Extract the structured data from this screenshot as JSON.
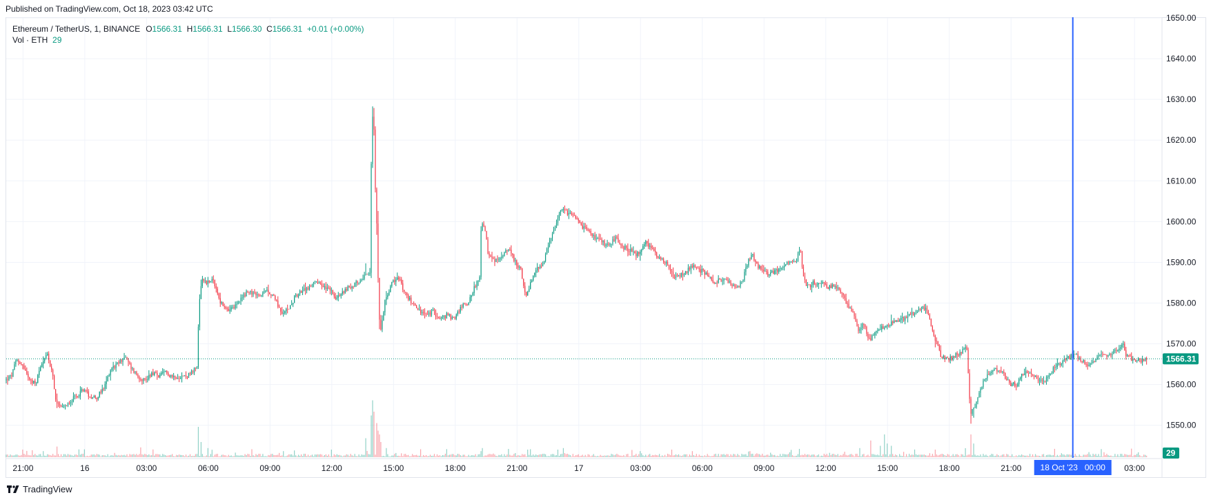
{
  "header": {
    "published": "Published on TradingView.com, Oct 18, 2023 03:42 UTC"
  },
  "legend": {
    "symbol": "Ethereum / TetherUS, 1, BINANCE",
    "o_label": "O",
    "o_value": "1566.31",
    "h_label": "H",
    "h_value": "1566.31",
    "l_label": "L",
    "l_value": "1566.30",
    "c_label": "C",
    "c_value": "1566.31",
    "change": "+0.01 (+0.00%)",
    "vol_label": "Vol · ETH",
    "vol_value": "29"
  },
  "price_label": "1566.31",
  "volume_label": "29",
  "crosshair_label": "18 Oct '23   00:00",
  "brand": "TradingView",
  "colors": {
    "up": "#089981",
    "down": "#f23645",
    "crosshair": "#2962ff",
    "grid": "#f0f3fa"
  },
  "chart_data": {
    "type": "candlestick",
    "symbol": "ETHUSDT",
    "interval": "1m",
    "ylim": [
      1542,
      1650
    ],
    "y_ticks": [
      1550,
      1560,
      1570,
      1580,
      1590,
      1600,
      1610,
      1620,
      1630,
      1640,
      1650
    ],
    "x_ticks": [
      {
        "label": "21:00",
        "t": 0
      },
      {
        "label": "16",
        "t": 180
      },
      {
        "label": "03:00",
        "t": 360
      },
      {
        "label": "06:00",
        "t": 540
      },
      {
        "label": "09:00",
        "t": 720
      },
      {
        "label": "12:00",
        "t": 900
      },
      {
        "label": "15:00",
        "t": 1080
      },
      {
        "label": "18:00",
        "t": 1260
      },
      {
        "label": "21:00",
        "t": 1440
      },
      {
        "label": "17",
        "t": 1620
      },
      {
        "label": "03:00",
        "t": 1800
      },
      {
        "label": "06:00",
        "t": 1980
      },
      {
        "label": "09:00",
        "t": 2160
      },
      {
        "label": "12:00",
        "t": 2340
      },
      {
        "label": "15:00",
        "t": 2520
      },
      {
        "label": "18:00",
        "t": 2700
      },
      {
        "label": "21:00",
        "t": 2880
      },
      {
        "label": "03:00",
        "t": 3240
      }
    ],
    "t_range": [
      -49,
      3318
    ],
    "crosshair_t": 3060,
    "last_close": 1566.31,
    "price_path": [
      [
        -49,
        1561
      ],
      [
        -30,
        1562
      ],
      [
        -15,
        1566
      ],
      [
        0,
        1565
      ],
      [
        20,
        1562
      ],
      [
        40,
        1560
      ],
      [
        60,
        1566
      ],
      [
        75,
        1567
      ],
      [
        90,
        1563
      ],
      [
        100,
        1555
      ],
      [
        120,
        1554
      ],
      [
        140,
        1556
      ],
      [
        160,
        1557
      ],
      [
        180,
        1559
      ],
      [
        200,
        1557
      ],
      [
        220,
        1557
      ],
      [
        240,
        1559
      ],
      [
        260,
        1564
      ],
      [
        280,
        1565
      ],
      [
        300,
        1567
      ],
      [
        320,
        1564
      ],
      [
        340,
        1562
      ],
      [
        360,
        1561
      ],
      [
        380,
        1563
      ],
      [
        400,
        1562
      ],
      [
        420,
        1563
      ],
      [
        440,
        1562
      ],
      [
        460,
        1562
      ],
      [
        480,
        1562
      ],
      [
        500,
        1563
      ],
      [
        513,
        1565
      ],
      [
        516,
        1578
      ],
      [
        525,
        1586
      ],
      [
        540,
        1585
      ],
      [
        555,
        1586
      ],
      [
        565,
        1584
      ],
      [
        580,
        1580
      ],
      [
        600,
        1578
      ],
      [
        620,
        1579
      ],
      [
        640,
        1581
      ],
      [
        660,
        1583
      ],
      [
        680,
        1582
      ],
      [
        700,
        1582
      ],
      [
        720,
        1583
      ],
      [
        740,
        1581
      ],
      [
        760,
        1577
      ],
      [
        780,
        1579
      ],
      [
        800,
        1582
      ],
      [
        820,
        1583
      ],
      [
        840,
        1584
      ],
      [
        860,
        1585
      ],
      [
        880,
        1584
      ],
      [
        900,
        1583
      ],
      [
        920,
        1581
      ],
      [
        940,
        1583
      ],
      [
        960,
        1584
      ],
      [
        980,
        1585
      ],
      [
        1000,
        1587
      ],
      [
        1015,
        1588
      ],
      [
        1020,
        1620
      ],
      [
        1025,
        1630
      ],
      [
        1030,
        1610
      ],
      [
        1035,
        1600
      ],
      [
        1040,
        1582
      ],
      [
        1045,
        1572
      ],
      [
        1050,
        1575
      ],
      [
        1060,
        1581
      ],
      [
        1080,
        1585
      ],
      [
        1100,
        1586
      ],
      [
        1120,
        1582
      ],
      [
        1140,
        1580
      ],
      [
        1160,
        1578
      ],
      [
        1180,
        1577
      ],
      [
        1200,
        1578
      ],
      [
        1220,
        1576
      ],
      [
        1240,
        1577
      ],
      [
        1260,
        1576
      ],
      [
        1280,
        1579
      ],
      [
        1300,
        1580
      ],
      [
        1320,
        1584
      ],
      [
        1335,
        1586
      ],
      [
        1340,
        1600
      ],
      [
        1350,
        1598
      ],
      [
        1360,
        1592
      ],
      [
        1380,
        1590
      ],
      [
        1400,
        1592
      ],
      [
        1420,
        1593
      ],
      [
        1440,
        1590
      ],
      [
        1455,
        1588
      ],
      [
        1470,
        1581
      ],
      [
        1480,
        1584
      ],
      [
        1500,
        1588
      ],
      [
        1520,
        1590
      ],
      [
        1540,
        1595
      ],
      [
        1560,
        1600
      ],
      [
        1575,
        1603
      ],
      [
        1590,
        1602
      ],
      [
        1610,
        1601
      ],
      [
        1630,
        1599
      ],
      [
        1650,
        1598
      ],
      [
        1670,
        1596
      ],
      [
        1690,
        1595
      ],
      [
        1710,
        1594
      ],
      [
        1730,
        1596
      ],
      [
        1750,
        1594
      ],
      [
        1770,
        1593
      ],
      [
        1790,
        1592
      ],
      [
        1800,
        1592
      ],
      [
        1820,
        1595
      ],
      [
        1840,
        1593
      ],
      [
        1860,
        1591
      ],
      [
        1880,
        1590
      ],
      [
        1900,
        1586
      ],
      [
        1920,
        1587
      ],
      [
        1940,
        1588
      ],
      [
        1960,
        1589
      ],
      [
        1980,
        1588
      ],
      [
        2000,
        1587
      ],
      [
        2020,
        1585
      ],
      [
        2040,
        1586
      ],
      [
        2060,
        1585
      ],
      [
        2080,
        1584
      ],
      [
        2100,
        1585
      ],
      [
        2120,
        1591
      ],
      [
        2130,
        1592
      ],
      [
        2145,
        1589
      ],
      [
        2160,
        1588
      ],
      [
        2180,
        1587
      ],
      [
        2200,
        1588
      ],
      [
        2220,
        1589
      ],
      [
        2240,
        1590
      ],
      [
        2260,
        1591
      ],
      [
        2270,
        1593
      ],
      [
        2280,
        1586
      ],
      [
        2290,
        1584
      ],
      [
        2310,
        1585
      ],
      [
        2330,
        1585
      ],
      [
        2350,
        1584
      ],
      [
        2370,
        1584
      ],
      [
        2390,
        1583
      ],
      [
        2410,
        1579
      ],
      [
        2425,
        1578
      ],
      [
        2440,
        1573
      ],
      [
        2455,
        1575
      ],
      [
        2470,
        1571
      ],
      [
        2490,
        1573
      ],
      [
        2510,
        1574
      ],
      [
        2530,
        1575
      ],
      [
        2550,
        1576
      ],
      [
        2570,
        1576
      ],
      [
        2590,
        1577
      ],
      [
        2610,
        1578
      ],
      [
        2625,
        1579
      ],
      [
        2640,
        1578
      ],
      [
        2660,
        1572
      ],
      [
        2680,
        1567
      ],
      [
        2700,
        1566
      ],
      [
        2720,
        1567
      ],
      [
        2740,
        1568
      ],
      [
        2755,
        1569
      ],
      [
        2765,
        1553
      ],
      [
        2780,
        1555
      ],
      [
        2800,
        1560
      ],
      [
        2820,
        1563
      ],
      [
        2840,
        1564
      ],
      [
        2860,
        1563
      ],
      [
        2880,
        1560
      ],
      [
        2900,
        1560
      ],
      [
        2920,
        1563
      ],
      [
        2940,
        1563
      ],
      [
        2960,
        1561
      ],
      [
        2980,
        1561
      ],
      [
        3000,
        1563
      ],
      [
        3020,
        1565
      ],
      [
        3040,
        1566
      ],
      [
        3060,
        1567
      ],
      [
        3080,
        1567
      ],
      [
        3100,
        1565
      ],
      [
        3120,
        1565
      ],
      [
        3140,
        1567
      ],
      [
        3160,
        1567
      ],
      [
        3180,
        1568
      ],
      [
        3200,
        1569
      ],
      [
        3210,
        1570
      ],
      [
        3220,
        1567
      ],
      [
        3240,
        1566
      ],
      [
        3260,
        1566
      ],
      [
        3275,
        1566
      ]
    ],
    "volume_spikes": [
      [
        0,
        10
      ],
      [
        60,
        8
      ],
      [
        100,
        14
      ],
      [
        513,
        40
      ],
      [
        520,
        20
      ],
      [
        540,
        12
      ],
      [
        620,
        6
      ],
      [
        760,
        8
      ],
      [
        900,
        10
      ],
      [
        1000,
        25
      ],
      [
        1015,
        55
      ],
      [
        1020,
        75
      ],
      [
        1025,
        60
      ],
      [
        1030,
        45
      ],
      [
        1035,
        35
      ],
      [
        1040,
        30
      ],
      [
        1045,
        20
      ],
      [
        1060,
        12
      ],
      [
        1335,
        8
      ],
      [
        1340,
        12
      ],
      [
        1470,
        10
      ],
      [
        1560,
        10
      ],
      [
        1575,
        12
      ],
      [
        1800,
        8
      ],
      [
        1890,
        10
      ],
      [
        2120,
        8
      ],
      [
        2440,
        12
      ],
      [
        2470,
        22
      ],
      [
        2500,
        15
      ],
      [
        2510,
        30
      ],
      [
        2520,
        18
      ],
      [
        2530,
        15
      ],
      [
        2660,
        10
      ],
      [
        2765,
        30
      ],
      [
        2770,
        18
      ],
      [
        3060,
        6
      ]
    ]
  }
}
